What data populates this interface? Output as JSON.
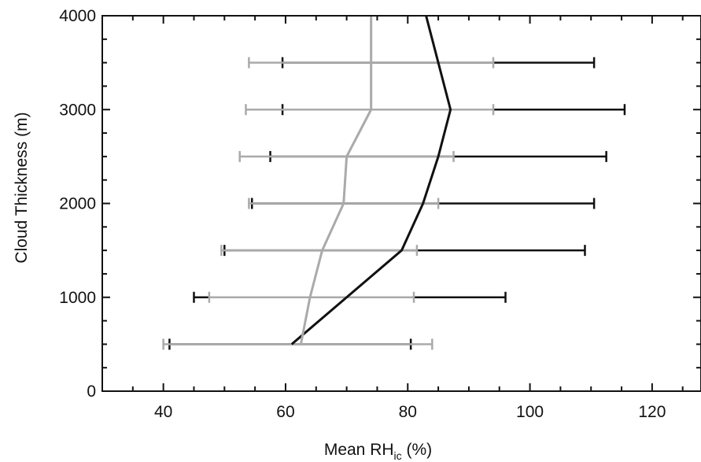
{
  "chart_data": {
    "type": "line",
    "title": "",
    "xlabel": {
      "main": "Mean RH",
      "sub": "ic",
      "suffix": " (%)"
    },
    "ylabel": "Cloud Thickness (m)",
    "xlim": [
      30,
      128
    ],
    "ylim": [
      0,
      4000
    ],
    "xticks": [
      40,
      60,
      80,
      100,
      120
    ],
    "yticks": [
      0,
      1000,
      2000,
      3000,
      4000
    ],
    "grid": false,
    "legend": "none",
    "series": [
      {
        "color": "#111111",
        "points": [
          {
            "y": 500,
            "x": 61,
            "lo": 41,
            "hi": 80.5
          },
          {
            "y": 1000,
            "x": 70,
            "lo": 45,
            "hi": 96
          },
          {
            "y": 1500,
            "x": 79,
            "lo": 50,
            "hi": 109
          },
          {
            "y": 2000,
            "x": 82.5,
            "lo": 54.5,
            "hi": 110.5
          },
          {
            "y": 2500,
            "x": 85,
            "lo": 57.5,
            "hi": 112.5
          },
          {
            "y": 3000,
            "x": 87,
            "lo": 59.5,
            "hi": 115.5
          },
          {
            "y": 3500,
            "x": 85,
            "lo": 59.5,
            "hi": 110.5
          },
          {
            "y": 4000,
            "x": 83
          }
        ]
      },
      {
        "color": "#aaaaaa",
        "points": [
          {
            "y": 500,
            "x": 62.5,
            "lo": 40,
            "hi": 84
          },
          {
            "y": 1000,
            "x": 64,
            "lo": 47.5,
            "hi": 81
          },
          {
            "y": 1500,
            "x": 66,
            "lo": 49.5,
            "hi": 81.5
          },
          {
            "y": 2000,
            "x": 69.5,
            "lo": 54,
            "hi": 85
          },
          {
            "y": 2500,
            "x": 70,
            "lo": 52.5,
            "hi": 87.5
          },
          {
            "y": 3000,
            "x": 74,
            "lo": 53.5,
            "hi": 94
          },
          {
            "y": 3500,
            "x": 74,
            "lo": 54,
            "hi": 94
          },
          {
            "y": 4000,
            "x": 74
          }
        ]
      }
    ]
  }
}
